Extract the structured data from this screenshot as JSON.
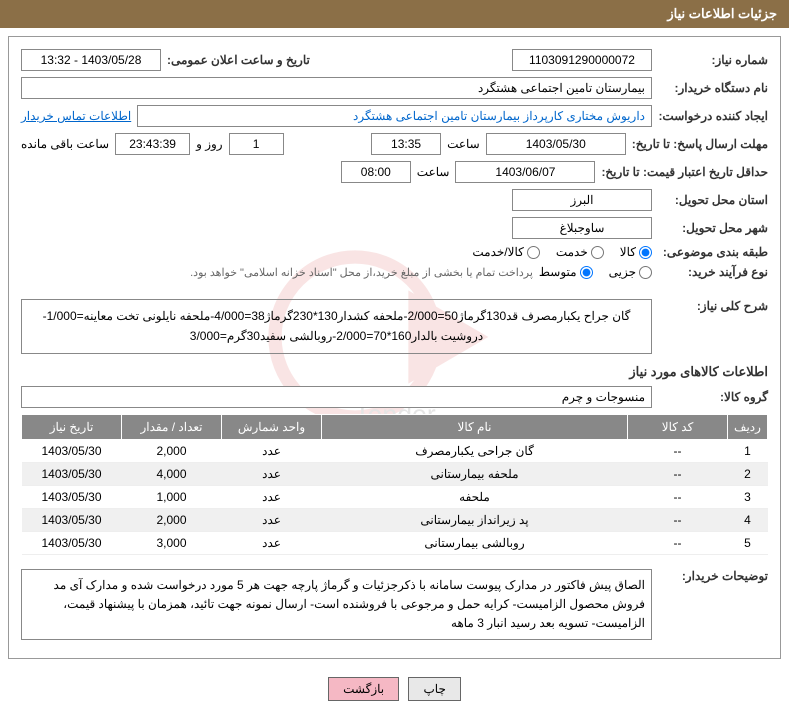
{
  "header": {
    "title": "جزئیات اطلاعات نیاز"
  },
  "fields": {
    "need_number_label": "شماره نیاز:",
    "need_number": "1103091290000072",
    "announce_datetime_label": "تاریخ و ساعت اعلان عمومی:",
    "announce_datetime": "1403/05/28 - 13:32",
    "buyer_org_label": "نام دستگاه خریدار:",
    "buyer_org": "بیمارستان تامین اجتماعی هشتگرد",
    "requester_label": "ایجاد کننده درخواست:",
    "requester": "داریوش مختاری کارپرداز بیمارستان تامین اجتماعی هشتگرد",
    "contact_link": "اطلاعات تماس خریدار",
    "response_deadline_label": "مهلت ارسال پاسخ: تا تاریخ:",
    "response_date": "1403/05/30",
    "time_label": "ساعت",
    "response_time": "13:35",
    "remaining_days": "1",
    "day_and": "روز و",
    "remaining_time": "23:43:39",
    "remaining_suffix": "ساعت باقی مانده",
    "validity_label": "حداقل تاریخ اعتبار قیمت: تا تاریخ:",
    "validity_date": "1403/06/07",
    "validity_time": "08:00",
    "province_label": "استان محل تحویل:",
    "province": "البرز",
    "city_label": "شهر محل تحویل:",
    "city": "ساوجبلاغ",
    "category_label": "طبقه بندی موضوعی:",
    "radio_goods": "کالا",
    "radio_service": "خدمت",
    "radio_both": "کالا/خدمت",
    "purchase_type_label": "نوع فرآیند خرید:",
    "radio_small": "جزیی",
    "radio_medium": "متوسط",
    "purchase_note": "پرداخت تمام یا بخشی از مبلغ خرید،از محل \"اسناد خزانه اسلامی\" خواهد بود.",
    "general_desc_label": "شرح کلی نیاز:",
    "general_desc": "گان جراح یکبارمصرف قد130گرماژ50=2/000-ملحفه کشدار130*230گرماژ38=4/000-ملحفه نایلونی تخت معاینه=1/000-دروشیت بالدار160*70=2/000-روبالشی سفید30گرم=3/000",
    "goods_section_title": "اطلاعات کالاهای مورد نیاز",
    "goods_group_label": "گروه کالا:",
    "goods_group": "منسوجات و چرم",
    "buyer_notes_label": "توضیحات خریدار:",
    "buyer_notes": "الصاق پیش فاکتور در مدارک پیوست سامانه با ذکرجزئیات و گرماژ پارچه جهت هر 5 مورد درخواست شده و مدارک آی مد فروش محصول الزامیست- کرایه حمل و مرجوعی با فروشنده است- ارسال نمونه جهت تائید، همزمان با پیشنهاد قیمت، الزامیست- تسویه بعد رسید انبار 3 ماهه"
  },
  "table": {
    "headers": {
      "row": "ردیف",
      "code": "کد کالا",
      "name": "نام کالا",
      "unit": "واحد شمارش",
      "qty": "تعداد / مقدار",
      "date": "تاریخ نیاز"
    },
    "rows": [
      {
        "n": "1",
        "code": "--",
        "name": "گان جراحی یکبارمصرف",
        "unit": "عدد",
        "qty": "2,000",
        "date": "1403/05/30"
      },
      {
        "n": "2",
        "code": "--",
        "name": "ملحفه بیمارستانی",
        "unit": "عدد",
        "qty": "4,000",
        "date": "1403/05/30"
      },
      {
        "n": "3",
        "code": "--",
        "name": "ملحفه",
        "unit": "عدد",
        "qty": "1,000",
        "date": "1403/05/30"
      },
      {
        "n": "4",
        "code": "--",
        "name": "پد زیرانداز بیمارستانی",
        "unit": "عدد",
        "qty": "2,000",
        "date": "1403/05/30"
      },
      {
        "n": "5",
        "code": "--",
        "name": "روبالشی بیمارستانی",
        "unit": "عدد",
        "qty": "3,000",
        "date": "1403/05/30"
      }
    ]
  },
  "buttons": {
    "print": "چاپ",
    "back": "بازگشت"
  },
  "colors": {
    "header_bg": "#8b6f47",
    "th_bg": "#888888",
    "btn_back_bg": "#f5b8c4",
    "link": "#0066cc"
  }
}
